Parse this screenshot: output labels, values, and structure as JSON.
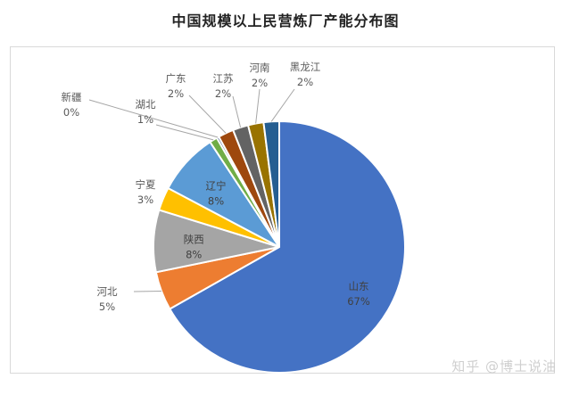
{
  "title": "中国规模以上民营炼厂产能分布图",
  "watermark": "知乎 @博士说油",
  "chart_data": {
    "type": "pie",
    "title": "中国规模以上民营炼厂产能分布图",
    "unit": "%",
    "start_angle_deg": 0,
    "direction": "clockwise",
    "slices": [
      {
        "label": "山东",
        "value": 67,
        "pct_text": "67%",
        "color": "#4472C4",
        "label_pos": "inside"
      },
      {
        "label": "河北",
        "value": 5,
        "pct_text": "5%",
        "color": "#ED7D31",
        "label_pos": "outside"
      },
      {
        "label": "陕西",
        "value": 8,
        "pct_text": "8%",
        "color": "#A5A5A5",
        "label_pos": "inside"
      },
      {
        "label": "宁夏",
        "value": 3,
        "pct_text": "3%",
        "color": "#FFC000",
        "label_pos": "outside"
      },
      {
        "label": "辽宁",
        "value": 8,
        "pct_text": "8%",
        "color": "#5B9BD5",
        "label_pos": "inside"
      },
      {
        "label": "湖北",
        "value": 1,
        "pct_text": "1%",
        "color": "#70AD47",
        "label_pos": "outside"
      },
      {
        "label": "新疆",
        "value": 0.3,
        "pct_text": "0%",
        "color": "#264478",
        "label_pos": "outside"
      },
      {
        "label": "广东",
        "value": 2,
        "pct_text": "2%",
        "color": "#9E480E",
        "label_pos": "outside"
      },
      {
        "label": "江苏",
        "value": 2,
        "pct_text": "2%",
        "color": "#636363",
        "label_pos": "outside"
      },
      {
        "label": "河南",
        "value": 2,
        "pct_text": "2%",
        "color": "#997300",
        "label_pos": "outside"
      },
      {
        "label": "黑龙江",
        "value": 2,
        "pct_text": "2%",
        "color": "#255E91",
        "label_pos": "outside"
      }
    ],
    "legend": "none",
    "data_labels": "category name + percentage"
  }
}
